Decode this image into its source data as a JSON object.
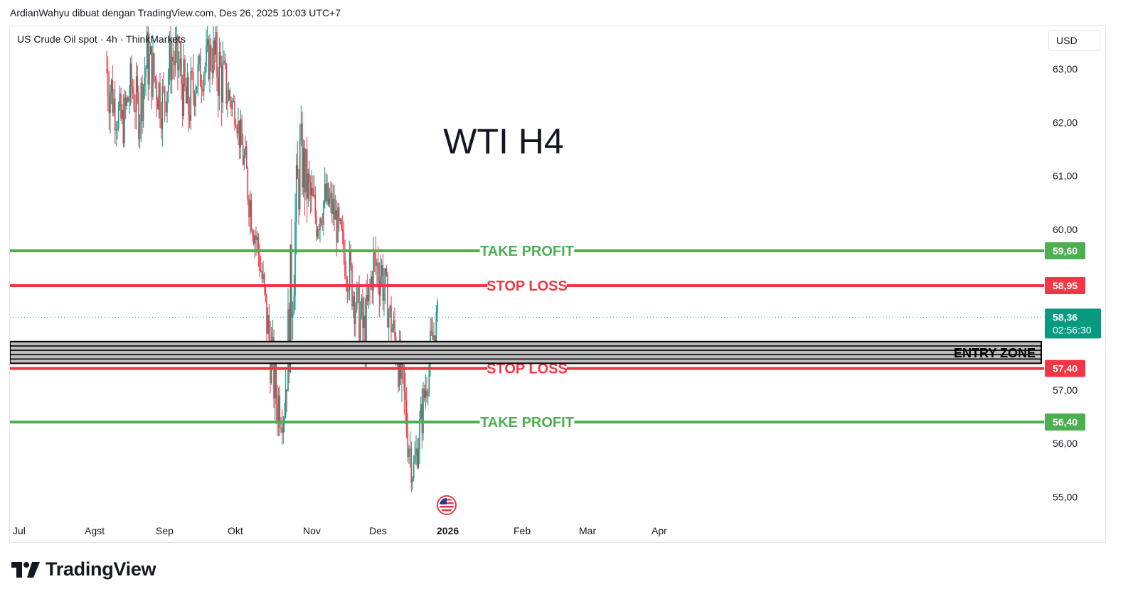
{
  "header": {
    "text": "ArdianWahyu dibuat dengan TradingView.com, Des 26, 2025 10:03 UTC+7"
  },
  "symbol": {
    "title": "US Crude Oil spot · 4h · ThinkMarkets"
  },
  "currency": "USD",
  "footer": {
    "brand": "TradingView"
  },
  "chart_data": {
    "type": "candlestick",
    "title": "WTI H4",
    "currency": "USD",
    "y_ticks": [
      "63,00",
      "62,00",
      "61,00",
      "60,00",
      "57,00",
      "56,00",
      "55,00"
    ],
    "y_tick_values": [
      63,
      62,
      61,
      60,
      57,
      56,
      55
    ],
    "x_ticks": [
      "Jul",
      "Agst",
      "Sep",
      "Okt",
      "Nov",
      "Des",
      "2026",
      "Feb",
      "Mar",
      "Apr"
    ],
    "x_tick_bold": [
      false,
      false,
      false,
      false,
      false,
      false,
      true,
      false,
      false,
      false
    ],
    "levels": [
      {
        "label": "TAKE PROFIT",
        "price": 59.6,
        "price_label": "59,60",
        "color": "#4caf50"
      },
      {
        "label": "STOP LOSS",
        "price": 58.95,
        "price_label": "58,95",
        "color": "#f23645"
      },
      {
        "label": "STOP LOSS",
        "price": 57.4,
        "price_label": "57,40",
        "color": "#f23645"
      },
      {
        "label": "TAKE PROFIT",
        "price": 56.4,
        "price_label": "56,40",
        "color": "#4caf50"
      }
    ],
    "entry_zone": {
      "label": "ENTRY ZONE",
      "from": 57.55,
      "to": 57.85
    },
    "last_price": {
      "value": 58.36,
      "label": "58,36",
      "countdown": "02:56:30",
      "color": "#089981"
    },
    "candles_outline": [
      [
        64.2,
        61.8
      ],
      [
        63.0,
        61.6
      ],
      [
        62.6,
        61.3
      ],
      [
        63.4,
        62.0
      ],
      [
        63.0,
        61.4
      ],
      [
        64.1,
        62.3
      ],
      [
        63.6,
        62.0
      ],
      [
        63.2,
        61.5
      ],
      [
        64.0,
        62.5
      ],
      [
        63.8,
        62.2
      ],
      [
        63.2,
        61.2
      ],
      [
        63.5,
        62.1
      ],
      [
        63.6,
        62.4
      ],
      [
        64.0,
        62.6
      ],
      [
        64.0,
        61.9
      ],
      [
        63.2,
        61.9
      ],
      [
        62.6,
        61.8
      ],
      [
        62.0,
        60.6
      ],
      [
        61.0,
        59.6
      ],
      [
        60.0,
        58.8
      ],
      [
        59.0,
        57.2
      ],
      [
        57.8,
        55.9
      ],
      [
        57.3,
        56.0
      ],
      [
        61.0,
        57.4
      ],
      [
        62.4,
        60.4
      ],
      [
        61.6,
        59.8
      ],
      [
        60.9,
        59.5
      ],
      [
        61.2,
        59.9
      ],
      [
        61.0,
        59.8
      ],
      [
        60.4,
        59.2
      ],
      [
        60.0,
        58.5
      ],
      [
        59.3,
        57.8
      ],
      [
        58.9,
        57.1
      ],
      [
        60.1,
        58.6
      ],
      [
        60.2,
        58.3
      ],
      [
        59.0,
        57.9
      ],
      [
        58.5,
        57.0
      ],
      [
        57.6,
        55.6
      ],
      [
        56.0,
        54.9
      ],
      [
        57.1,
        55.8
      ],
      [
        58.3,
        56.9
      ],
      [
        58.8,
        58.0
      ]
    ],
    "grid": false,
    "legend": "none"
  }
}
